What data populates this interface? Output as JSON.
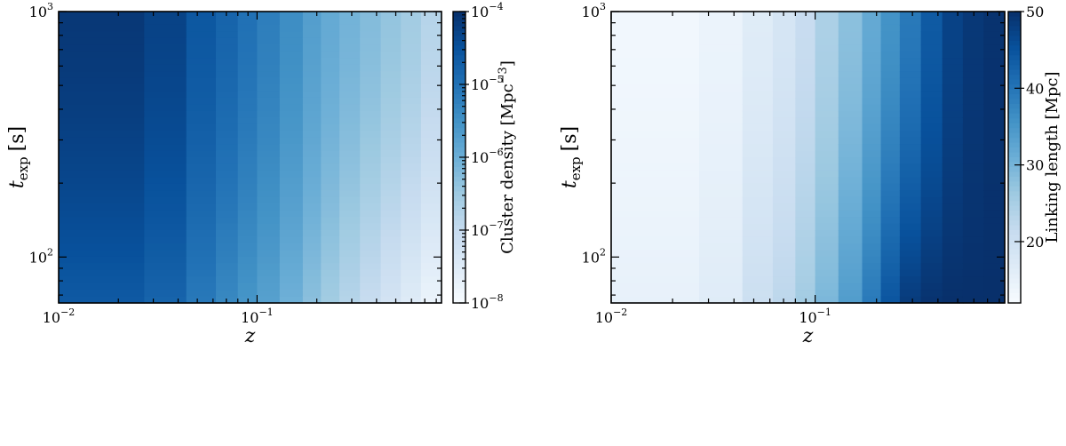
{
  "chart_data": [
    {
      "type": "heatmap",
      "title": "",
      "xlabel": "z",
      "ylabel": {
        "main": "t",
        "sub": "exp",
        "unit": "[s]"
      },
      "x_scale": "log",
      "y_scale": "log",
      "xlim": [
        0.01,
        0.85
      ],
      "ylim": [
        65,
        1000
      ],
      "x_ticks": [
        {
          "value": 0.01,
          "base": "10",
          "exp": "−2"
        },
        {
          "value": 0.1,
          "base": "10",
          "exp": "−1"
        }
      ],
      "y_ticks": [
        {
          "value": 100,
          "base": "10",
          "exp": "2"
        },
        {
          "value": 1000,
          "base": "10",
          "exp": "3"
        }
      ],
      "colorbar": {
        "label": {
          "main": "Cluster density [Mpc",
          "exp": "−3",
          "end": "]"
        },
        "scale": "log",
        "range": [
          1e-08,
          0.0001
        ],
        "ticks": [
          {
            "value": 0.0001,
            "base": "10",
            "exp": "−4"
          },
          {
            "value": 1e-05,
            "base": "10",
            "exp": "−5"
          },
          {
            "value": 1e-06,
            "base": "10",
            "exp": "−6"
          },
          {
            "value": 1e-07,
            "base": "10",
            "exp": "−7"
          },
          {
            "value": 1e-08,
            "base": "10",
            "exp": "−8"
          }
        ]
      },
      "colormap": "Blues",
      "field": {
        "z_edges": [
          0.01,
          0.027,
          0.044,
          0.062,
          0.08,
          0.1,
          0.13,
          0.17,
          0.21,
          0.26,
          0.33,
          0.42,
          0.53,
          0.67,
          0.85
        ],
        "color_level_top": [
          0.97,
          0.93,
          0.85,
          0.8,
          0.75,
          0.7,
          0.64,
          0.57,
          0.52,
          0.48,
          0.44,
          0.4,
          0.36,
          0.3
        ],
        "color_level_bottom": [
          0.84,
          0.8,
          0.72,
          0.66,
          0.61,
          0.56,
          0.49,
          0.42,
          0.36,
          0.3,
          0.24,
          0.18,
          0.12,
          0.06
        ]
      }
    },
    {
      "type": "heatmap",
      "title": "",
      "xlabel": "z",
      "ylabel": {
        "main": "t",
        "sub": "exp",
        "unit": "[s]"
      },
      "x_scale": "log",
      "y_scale": "log",
      "xlim": [
        0.01,
        0.85
      ],
      "ylim": [
        65,
        1000
      ],
      "x_ticks": [
        {
          "value": 0.01,
          "base": "10",
          "exp": "−2"
        },
        {
          "value": 0.1,
          "base": "10",
          "exp": "−1"
        }
      ],
      "y_ticks": [
        {
          "value": 100,
          "base": "10",
          "exp": "2"
        },
        {
          "value": 1000,
          "base": "10",
          "exp": "3"
        }
      ],
      "colorbar": {
        "label": {
          "main": "Linking length [Mpc]"
        },
        "scale": "linear",
        "range": [
          12,
          50
        ],
        "ticks": [
          {
            "value": 50,
            "text": "50"
          },
          {
            "value": 40,
            "text": "40"
          },
          {
            "value": 30,
            "text": "30"
          },
          {
            "value": 20,
            "text": "20"
          }
        ]
      },
      "colormap": "Blues",
      "field": {
        "z_edges": [
          0.01,
          0.027,
          0.044,
          0.062,
          0.08,
          0.1,
          0.13,
          0.17,
          0.21,
          0.26,
          0.33,
          0.42,
          0.53,
          0.67,
          0.85
        ],
        "color_level_top": [
          0.03,
          0.06,
          0.12,
          0.17,
          0.24,
          0.33,
          0.42,
          0.52,
          0.62,
          0.72,
          0.84,
          0.93,
          0.97,
          0.99
        ],
        "color_level_bottom": [
          0.08,
          0.12,
          0.22,
          0.28,
          0.36,
          0.46,
          0.58,
          0.72,
          0.86,
          0.96,
          0.99,
          1.0,
          1.0,
          1.0
        ]
      }
    }
  ]
}
